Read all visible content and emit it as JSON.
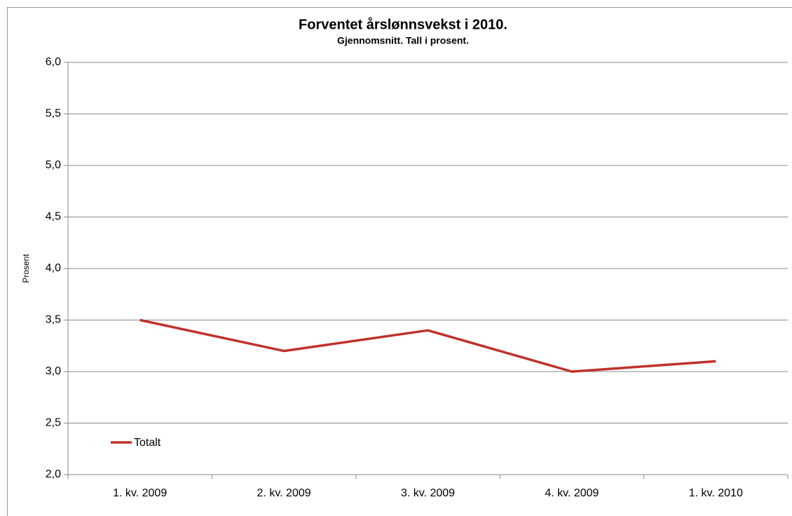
{
  "chart_data": {
    "type": "line",
    "title": "Forventet årslønnsvekst i 2010.",
    "subtitle": "Gjennomsnitt. Tall i prosent.",
    "y_label": "Prosent",
    "categories": [
      "1. kv. 2009",
      "2. kv. 2009",
      "3. kv. 2009",
      "4. kv. 2009",
      "1. kv. 2010"
    ],
    "series": [
      {
        "name": "Totalt",
        "color": "#c0312b",
        "values": [
          3.5,
          3.2,
          3.4,
          3.0,
          3.1
        ]
      }
    ],
    "ylim": [
      2,
      6
    ],
    "yticks": [
      {
        "value": 2,
        "label": "2,0"
      },
      {
        "value": 2.5,
        "label": "2,5"
      },
      {
        "value": 3,
        "label": "3,0"
      },
      {
        "value": 3.5,
        "label": "3,5"
      },
      {
        "value": 4,
        "label": "4,0"
      },
      {
        "value": 4.5,
        "label": "4,5"
      },
      {
        "value": 5,
        "label": "5,0"
      },
      {
        "value": 5.5,
        "label": "5,5"
      },
      {
        "value": 6,
        "label": "6,0"
      }
    ],
    "grid": true,
    "legend": "lower left"
  }
}
